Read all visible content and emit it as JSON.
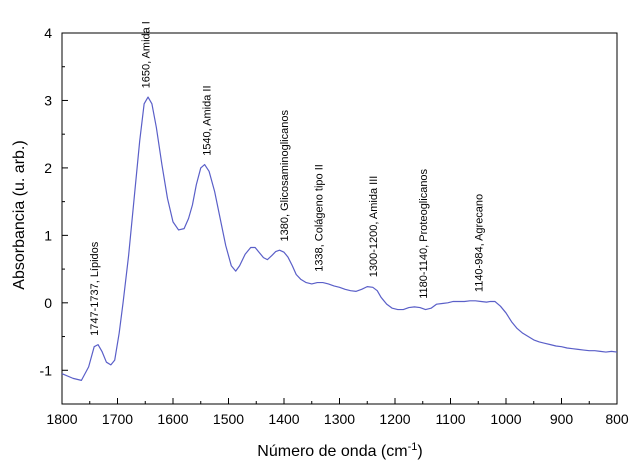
{
  "chart_data": {
    "type": "line",
    "xlabel": "Número de onda (cm",
    "xlabel_sup": "-1",
    "xlabel_end": ")",
    "ylabel": "Absorbancia (u. arb.)",
    "xlim": [
      1800,
      800
    ],
    "ylim": [
      -1.5,
      4
    ],
    "x_reversed": true,
    "x_ticks": [
      1800,
      1700,
      1600,
      1500,
      1400,
      1300,
      1200,
      1100,
      1000,
      900,
      800
    ],
    "y_ticks": [
      -1,
      0,
      1,
      2,
      3,
      4
    ],
    "line_color": "#5a5fc8",
    "grid": false,
    "series": [
      {
        "x": [
          1800,
          1780,
          1765,
          1752,
          1742,
          1735,
          1728,
          1720,
          1712,
          1705,
          1697,
          1690,
          1680,
          1670,
          1660,
          1652,
          1645,
          1638,
          1630,
          1620,
          1610,
          1600,
          1590,
          1580,
          1572,
          1565,
          1558,
          1550,
          1543,
          1535,
          1525,
          1515,
          1505,
          1495,
          1487,
          1480,
          1470,
          1460,
          1452,
          1445,
          1437,
          1430,
          1422,
          1415,
          1408,
          1400,
          1393,
          1385,
          1378,
          1370,
          1360,
          1350,
          1340,
          1330,
          1320,
          1310,
          1300,
          1290,
          1280,
          1270,
          1260,
          1250,
          1240,
          1232,
          1225,
          1215,
          1205,
          1195,
          1185,
          1175,
          1165,
          1155,
          1145,
          1135,
          1125,
          1115,
          1105,
          1095,
          1085,
          1075,
          1065,
          1055,
          1045,
          1035,
          1028,
          1020,
          1010,
          1000,
          990,
          980,
          970,
          960,
          950,
          940,
          930,
          920,
          910,
          900,
          890,
          880,
          870,
          860,
          850,
          840,
          830,
          820,
          810,
          800
        ],
        "y": [
          -1.05,
          -1.12,
          -1.15,
          -0.95,
          -0.65,
          -0.62,
          -0.72,
          -0.88,
          -0.92,
          -0.85,
          -0.45,
          0.0,
          0.7,
          1.55,
          2.4,
          2.95,
          3.05,
          2.95,
          2.6,
          2.05,
          1.55,
          1.2,
          1.08,
          1.1,
          1.25,
          1.45,
          1.75,
          2.0,
          2.05,
          1.95,
          1.65,
          1.25,
          0.85,
          0.55,
          0.47,
          0.55,
          0.72,
          0.82,
          0.82,
          0.75,
          0.67,
          0.64,
          0.7,
          0.76,
          0.78,
          0.75,
          0.68,
          0.55,
          0.42,
          0.35,
          0.3,
          0.28,
          0.3,
          0.3,
          0.28,
          0.25,
          0.23,
          0.2,
          0.18,
          0.17,
          0.2,
          0.24,
          0.23,
          0.18,
          0.08,
          -0.02,
          -0.08,
          -0.1,
          -0.1,
          -0.07,
          -0.06,
          -0.07,
          -0.1,
          -0.08,
          -0.02,
          -0.01,
          0.0,
          0.02,
          0.02,
          0.02,
          0.03,
          0.03,
          0.02,
          0.01,
          0.02,
          0.02,
          -0.05,
          -0.15,
          -0.28,
          -0.38,
          -0.45,
          -0.5,
          -0.55,
          -0.58,
          -0.6,
          -0.62,
          -0.64,
          -0.65,
          -0.67,
          -0.68,
          -0.69,
          -0.7,
          -0.71,
          -0.71,
          -0.72,
          -0.73,
          -0.72,
          -0.73
        ]
      }
    ],
    "annotations": [
      {
        "text": "1747-1737, Lípidos",
        "x": 1742,
        "y": -0.55
      },
      {
        "text": "1650, Amida I",
        "x": 1650,
        "y": 3.12
      },
      {
        "text": "1540, Amida II",
        "x": 1540,
        "y": 2.12
      },
      {
        "text": "1380, Glicosaminoglicanos",
        "x": 1400,
        "y": 0.85
      },
      {
        "text": "1338, Colágeno tipo II",
        "x": 1338,
        "y": 0.4
      },
      {
        "text": "1300-1200, Amida III",
        "x": 1240,
        "y": 0.32
      },
      {
        "text": "1180-1140, Proteoglicanos",
        "x": 1150,
        "y": 0.0
      },
      {
        "text": "1140-984, Agrecano",
        "x": 1050,
        "y": 0.1
      }
    ]
  }
}
